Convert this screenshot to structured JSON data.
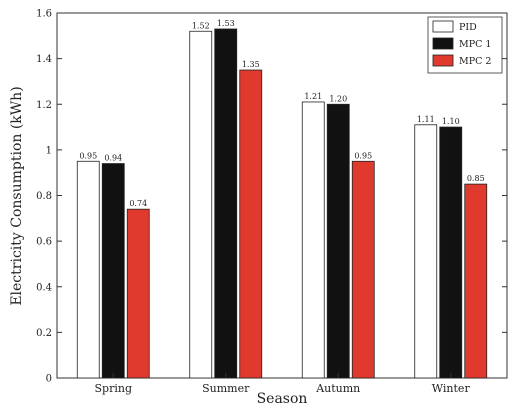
{
  "chart_data": {
    "type": "bar",
    "categories": [
      "Spring",
      "Summer",
      "Autumn",
      "Winter"
    ],
    "series": [
      {
        "name": "PID",
        "values": [
          0.95,
          1.52,
          1.21,
          1.11
        ],
        "labels": [
          "0.95",
          "1.52",
          "1.21",
          "1.11"
        ],
        "color": "#ffffff"
      },
      {
        "name": "MPC 1",
        "values": [
          0.94,
          1.53,
          1.2,
          1.1
        ],
        "labels": [
          "0.94",
          "1.53",
          "1.20",
          "1.10"
        ],
        "color": "#111111"
      },
      {
        "name": "MPC 2",
        "values": [
          0.74,
          1.35,
          0.95,
          0.85
        ],
        "labels": [
          "0.74",
          "1.35",
          "0.95",
          "0.85"
        ],
        "color": "#e03a2f"
      }
    ],
    "xlabel": "Season",
    "ylabel": "Electricity Consumption (kWh)",
    "ylim": [
      0,
      1.6
    ],
    "yticks": [
      0,
      0.2,
      0.4,
      0.6,
      0.8,
      1,
      1.2,
      1.4,
      1.6
    ],
    "ytick_labels": [
      "0",
      "0.2",
      "0.4",
      "0.6",
      "0.8",
      "1",
      "1.2",
      "1.4",
      "1.6"
    ],
    "legend_position": "top-right",
    "grid": false
  }
}
